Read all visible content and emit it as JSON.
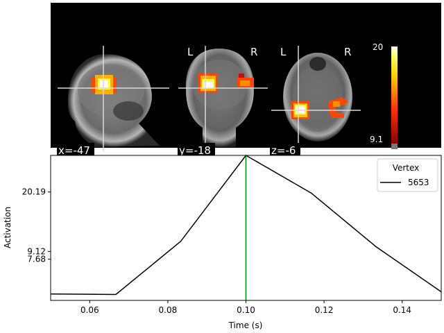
{
  "brain_panel": {
    "views": [
      {
        "coord_label": "x=-47",
        "left_label": "",
        "right_label": ""
      },
      {
        "coord_label": "y=-18",
        "left_label": "L",
        "right_label": "R"
      },
      {
        "coord_label": "z=-6",
        "left_label": "L",
        "right_label": "R"
      }
    ],
    "colorbar": {
      "max_label": "20",
      "min_label": "9.1"
    }
  },
  "colors": {
    "line": "#000000",
    "cursor": "#008000",
    "brain_background": "#000000",
    "hot_low": "#8b0000",
    "hot_mid": "#ff4500",
    "hot_high": "#ffff00",
    "hot_peak": "#ffffff"
  },
  "chart_data": {
    "type": "line",
    "xlabel": "Time (s)",
    "ylabel": "Activation",
    "xlim": [
      0.05,
      0.15
    ],
    "ylim": [
      0,
      27
    ],
    "x_ticks": [
      0.06,
      0.08,
      0.1,
      0.12,
      0.14
    ],
    "x_tick_labels": [
      "0.06",
      "0.08",
      "0.10",
      "0.12",
      "0.14"
    ],
    "y_ticks": [
      7.68,
      9.12,
      20.19
    ],
    "y_tick_labels": [
      "7.68",
      "9.12",
      "20.19"
    ],
    "legend": {
      "title": "Vertex",
      "position": "top-right"
    },
    "series": [
      {
        "name": "5653",
        "x": [
          0.05,
          0.0667,
          0.0833,
          0.1,
          0.1167,
          0.1333,
          0.15
        ],
        "values": [
          1.2,
          1.1,
          11.0,
          27.0,
          20.0,
          10.0,
          1.6
        ]
      }
    ],
    "cursor_x": 0.1,
    "grid": false
  }
}
